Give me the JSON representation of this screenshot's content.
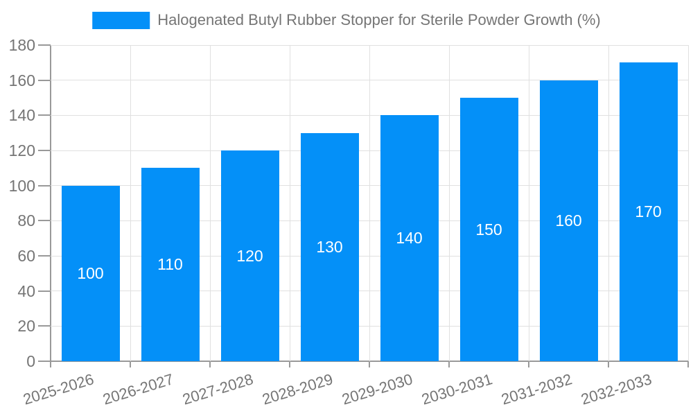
{
  "chart_data": {
    "type": "bar",
    "title": "",
    "legend": "Halogenated Butyl Rubber Stopper for Sterile Powder Growth (%)",
    "legend_position": "top",
    "categories": [
      "2025-2026",
      "2026-2027",
      "2027-2028",
      "2028-2029",
      "2029-2030",
      "2030-2031",
      "2031-2032",
      "2032-2033"
    ],
    "values": [
      100,
      110,
      120,
      130,
      140,
      150,
      160,
      170
    ],
    "xlabel": "",
    "ylabel": "",
    "ylim": [
      0,
      180
    ],
    "yticks": [
      0,
      20,
      40,
      60,
      80,
      100,
      120,
      140,
      160,
      180
    ],
    "grid": true,
    "bar_labels_visible": true,
    "bar_label_position": "inside-center",
    "xtick_rotation_deg": -17
  },
  "colors": {
    "bar": "#0490f8",
    "bar_label": "#ffffff",
    "axis": "#999999",
    "grid": "#e0e0e0",
    "text": "#757575",
    "background": "#ffffff"
  }
}
